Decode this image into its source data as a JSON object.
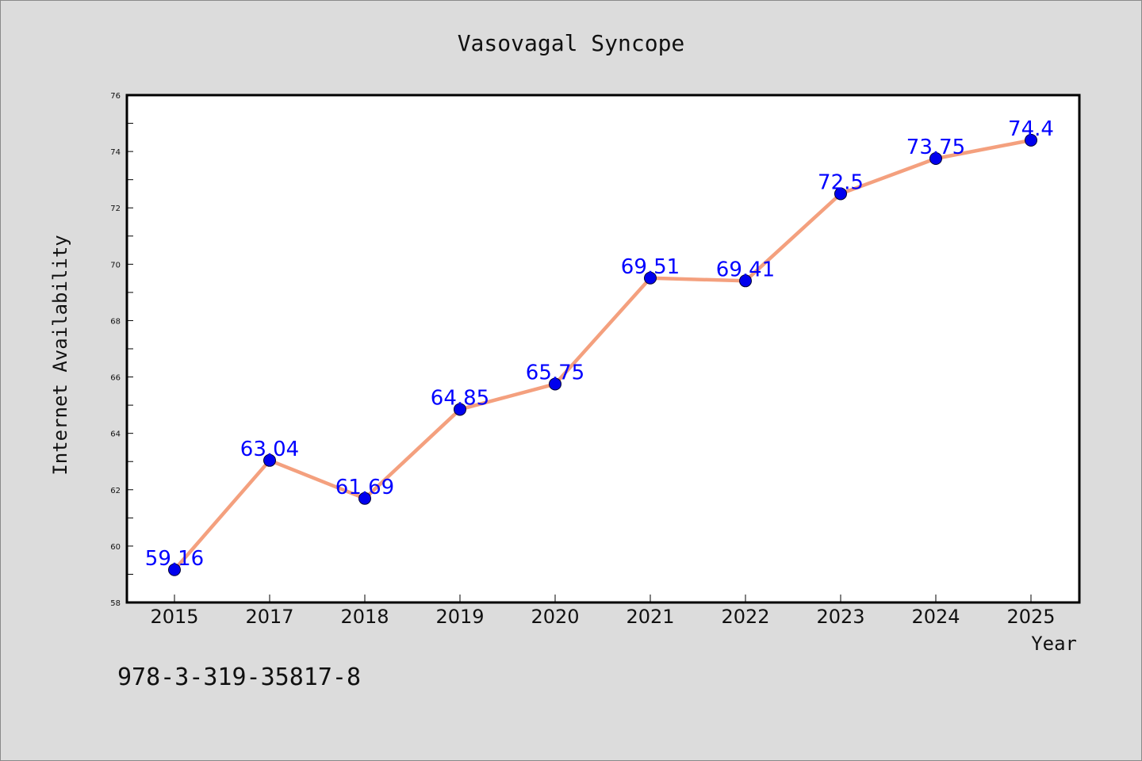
{
  "chart_data": {
    "type": "line",
    "title": "Vasovagal Syncope",
    "xlabel": "Year",
    "ylabel": "Internet Availability",
    "categories": [
      "2015",
      "2017",
      "2018",
      "2019",
      "2020",
      "2021",
      "2022",
      "2023",
      "2024",
      "2025"
    ],
    "series": [
      {
        "values": [
          59.16,
          63.04,
          61.69,
          64.85,
          65.75,
          69.51,
          69.41,
          72.5,
          73.75,
          74.4
        ],
        "labels": [
          "59.16",
          "63.04",
          "61.69",
          "64.85",
          "65.75",
          "69.51",
          "69.41",
          "72.5",
          "73.75",
          "74.4"
        ],
        "line_color": "#f4a07e",
        "marker_color": "#0000ee"
      }
    ],
    "ylim": [
      58,
      76
    ],
    "yticks": [
      "58",
      "60",
      "62",
      "64",
      "66",
      "68",
      "70",
      "72",
      "74",
      "76"
    ],
    "grid": false,
    "legend": "none",
    "label_color": "#0000ff"
  },
  "footer_text": "978-3-319-35817-8"
}
